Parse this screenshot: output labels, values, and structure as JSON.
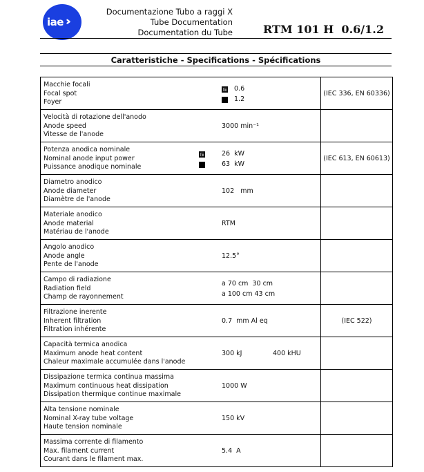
{
  "header": {
    "logo_text": "iae",
    "doc_lines": [
      "Documentazione Tubo a raggi X",
      "Tube Documentation",
      "Documentation du Tube"
    ],
    "model": "RTM 101 H  0.6/1.2",
    "section_title": "Caratteristiche -  Specifications - Spécifications",
    "brand_color": "#1a3fe0"
  },
  "rows": [
    {
      "labels": [
        "Macchie focali",
        "Focal spot",
        "Foyer"
      ],
      "values": [
        {
          "icon": "small-focus-icon",
          "text": "0.6"
        },
        {
          "icon": "large-focus-icon",
          "text": "1.2"
        }
      ],
      "standard": "(IEC 336, EN 60336)"
    },
    {
      "labels": [
        "Velocità di rotazione dell'anodo",
        "Anode speed",
        "Vitesse de l'anode"
      ],
      "values": [
        {
          "text": "3000 min⁻¹"
        }
      ],
      "standard": ""
    },
    {
      "labels": [
        "Potenza anodica nominale",
        "Nominal anode input power",
        "Puissance anodique nominale"
      ],
      "values": [
        {
          "icon": "small-focus-icon",
          "text": "26  kW"
        },
        {
          "icon": "large-focus-icon",
          "text": "63  kW"
        }
      ],
      "standard": "(IEC 613, EN 60613)"
    },
    {
      "labels": [
        "Diametro anodico",
        "Anode diameter",
        "Diamètre de l'anode"
      ],
      "values": [
        {
          "text": "102   mm"
        }
      ],
      "standard": ""
    },
    {
      "labels": [
        "Materiale anodico",
        "Anode material",
        "Matériau de l'anode"
      ],
      "values": [
        {
          "text": "RTM"
        }
      ],
      "standard": ""
    },
    {
      "labels": [
        "Angolo anodico",
        "Anode angle",
        "Pente de l'anode"
      ],
      "values": [
        {
          "text": "12.5°"
        }
      ],
      "standard": ""
    },
    {
      "labels": [
        "Campo di radiazione",
        "Radiation field",
        "Champ de rayonnement"
      ],
      "values": [
        {
          "text": "a 70 cm  30 cm"
        },
        {
          "text": "a 100 cm 43 cm"
        }
      ],
      "standard": ""
    },
    {
      "labels": [
        "Filtrazione inerente",
        "Inherent filtration",
        "Filtration inhérente"
      ],
      "values": [
        {
          "text": "0.7  mm Al eq"
        }
      ],
      "standard": "(IEC 522)"
    },
    {
      "labels": [
        "Capacità termica anodica",
        "Maximum anode heat content",
        "Chaleur maximale accumulée dans l'anode"
      ],
      "values": [
        {
          "text": "300 kJ"
        },
        {
          "text": "400 kHU"
        }
      ],
      "standard": ""
    },
    {
      "labels": [
        "Dissipazione termica continua massima",
        "Maximum continuous heat dissipation",
        "Dissipation thermique continue maximale"
      ],
      "values": [
        {
          "text": "1000 W"
        }
      ],
      "standard": ""
    },
    {
      "labels": [
        "Alta tensione nominale",
        "Nominal X-ray tube voltage",
        "Haute tension nominale"
      ],
      "values": [
        {
          "text": "150 kV"
        }
      ],
      "standard": ""
    },
    {
      "labels": [
        "Massima corrente di filamento",
        "Max. filament current",
        "Courant dans le filament max."
      ],
      "values": [
        {
          "text": "5.4  A"
        }
      ],
      "standard": ""
    }
  ]
}
